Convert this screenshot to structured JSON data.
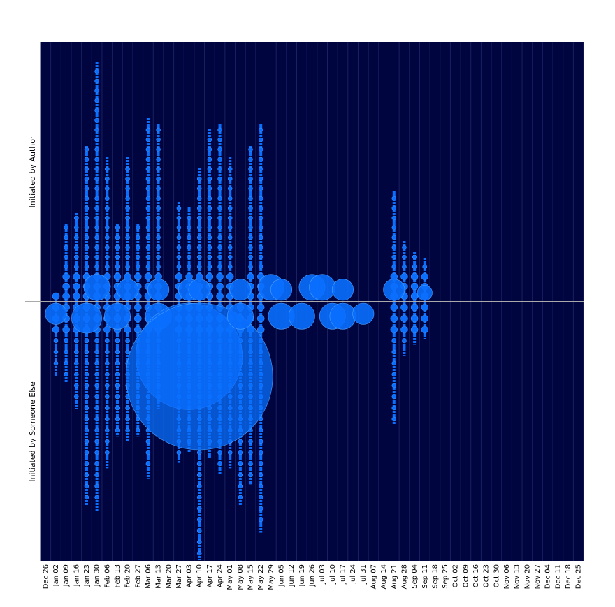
{
  "chart_data": {
    "type": "scatter",
    "title": "",
    "xlabel": "",
    "colors": {
      "background": "#000540",
      "grid": "#1a2060",
      "baseline": "#aaaaaa",
      "bubble": "#0a6fff",
      "bubble_edge": "#4aa0ff"
    },
    "y_labels": {
      "top": "Initiated by Author",
      "bottom": "Initiated by Someone Else"
    },
    "categories": [
      "Dec 26",
      "Jan 02",
      "Jan 09",
      "Jan 16",
      "Jan 23",
      "Jan 30",
      "Feb 06",
      "Feb 13",
      "Feb 20",
      "Feb 27",
      "Mar 06",
      "Mar 13",
      "Mar 20",
      "Mar 27",
      "Apr 03",
      "Apr 10",
      "Apr 17",
      "Apr 24",
      "May 01",
      "May 08",
      "May 15",
      "May 22",
      "May 29",
      "Jun 05",
      "Jun 12",
      "Jun 19",
      "Jun 26",
      "Jul 03",
      "Jul 10",
      "Jul 17",
      "Jul 24",
      "Jul 31",
      "Aug 07",
      "Aug 14",
      "Aug 21",
      "Aug 28",
      "Sep 04",
      "Sep 11",
      "Sep 18",
      "Sep 25",
      "Oct 02",
      "Oct 09",
      "Oct 16",
      "Oct 23",
      "Oct 30",
      "Nov 06",
      "Nov 13",
      "Nov 20",
      "Nov 27",
      "Dec 04",
      "Dec 11",
      "Dec 18",
      "Dec 25"
    ],
    "series": [
      {
        "values": [
          0,
          1,
          14,
          16,
          28,
          43,
          26,
          14,
          26,
          14,
          33,
          32,
          0,
          18,
          17,
          24,
          31,
          32,
          26,
          0,
          28,
          32,
          0,
          0,
          0,
          0,
          0,
          0,
          0,
          0,
          0,
          0,
          0,
          0,
          20,
          11,
          9,
          8,
          0,
          0,
          0,
          0,
          0,
          0,
          0,
          0,
          0,
          0,
          0,
          0,
          0,
          0,
          0
        ]
      },
      {
        "values": [
          0,
          14,
          15,
          20,
          38,
          39,
          31,
          25,
          26,
          25,
          33,
          20,
          0,
          30,
          28,
          48,
          29,
          32,
          31,
          38,
          34,
          43,
          0,
          0,
          0,
          0,
          0,
          0,
          0,
          0,
          0,
          0,
          0,
          0,
          23,
          10,
          8,
          7,
          0,
          0,
          0,
          0,
          0,
          0,
          0,
          0,
          0,
          0,
          0,
          0,
          0,
          0,
          0
        ]
      }
    ],
    "bubbles": [
      {
        "week": "Jan 30",
        "side": "top",
        "size": 3
      },
      {
        "week": "Feb 20",
        "side": "top",
        "size": 2
      },
      {
        "week": "Mar 13",
        "side": "top",
        "size": 2
      },
      {
        "week": "Apr 03",
        "side": "top",
        "size": 2
      },
      {
        "week": "Apr 10",
        "side": "top",
        "size": 2
      },
      {
        "week": "May 08",
        "side": "top",
        "size": 2
      },
      {
        "week": "May 29",
        "side": "top",
        "size": 3
      },
      {
        "week": "Jun 05",
        "side": "top",
        "size": 2
      },
      {
        "week": "Jun 26",
        "side": "top",
        "size": 3
      },
      {
        "week": "Jul 03",
        "side": "top",
        "size": 3
      },
      {
        "week": "Jul 17",
        "side": "top",
        "size": 2
      },
      {
        "week": "Aug 21",
        "side": "top",
        "size": 2
      },
      {
        "week": "Sep 11",
        "side": "top",
        "size": 1
      },
      {
        "week": "Jan 02",
        "side": "bottom",
        "size": 2
      },
      {
        "week": "Jan 23",
        "side": "bottom",
        "size": 4
      },
      {
        "week": "Feb 13",
        "side": "bottom",
        "size": 3
      },
      {
        "week": "Mar 13",
        "side": "bottom",
        "size": 3
      },
      {
        "week": "Apr 03",
        "side": "bottom",
        "size": 50
      },
      {
        "week": "Apr 10",
        "side": "bottom",
        "size": 95
      },
      {
        "week": "May 08",
        "side": "bottom",
        "size": 3
      },
      {
        "week": "Jun 05",
        "side": "bottom",
        "size": 3
      },
      {
        "week": "Jun 19",
        "side": "bottom",
        "size": 3
      },
      {
        "week": "Jul 10",
        "side": "bottom",
        "size": 3
      },
      {
        "week": "Jul 17",
        "side": "bottom",
        "size": 3
      },
      {
        "week": "Jul 31",
        "side": "bottom",
        "size": 2
      }
    ]
  }
}
